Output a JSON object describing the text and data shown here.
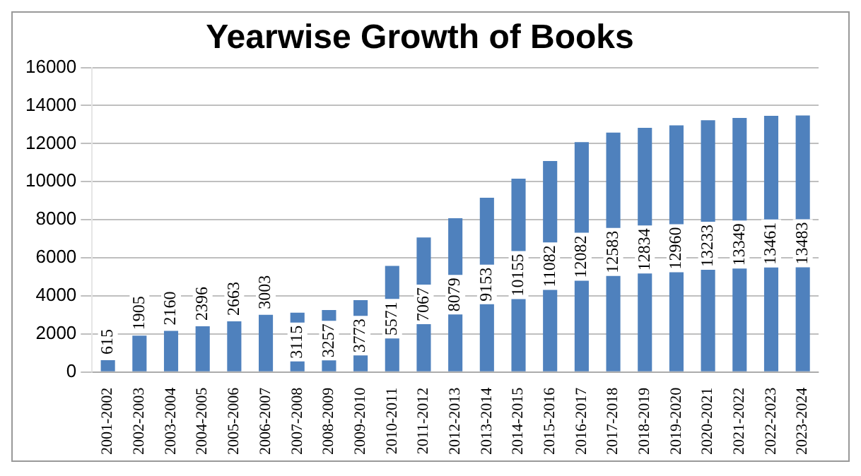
{
  "chart_data": {
    "type": "bar",
    "title": "Yearwise Growth of Books",
    "categories": [
      "2001-2002",
      "2002-2003",
      "2003-2004",
      "2004-2005",
      "2005-2006",
      "2006-2007",
      "2007-2008",
      "2008-2009",
      "2009-2010",
      "2010-2011",
      "2011-2012",
      "2012-2013",
      "2013-2014",
      "2014-2015",
      "2015-2016",
      "2016-2017",
      "2017-2018",
      "2018-2019",
      "2019-2020",
      "2020-2021",
      "2021-2022",
      "2022-2023",
      "2023-2024"
    ],
    "values": [
      615,
      1905,
      2160,
      2396,
      2663,
      3003,
      3115,
      3257,
      3773,
      5571,
      7067,
      8079,
      9153,
      10155,
      11082,
      12082,
      12583,
      12834,
      12960,
      13233,
      13349,
      13461,
      13483
    ],
    "color": "#4f81bd",
    "ylim": [
      0,
      16000
    ],
    "yticks": [
      0,
      2000,
      4000,
      6000,
      8000,
      10000,
      12000,
      14000,
      16000
    ],
    "grid": "y",
    "legend": false,
    "data_labels": true
  }
}
